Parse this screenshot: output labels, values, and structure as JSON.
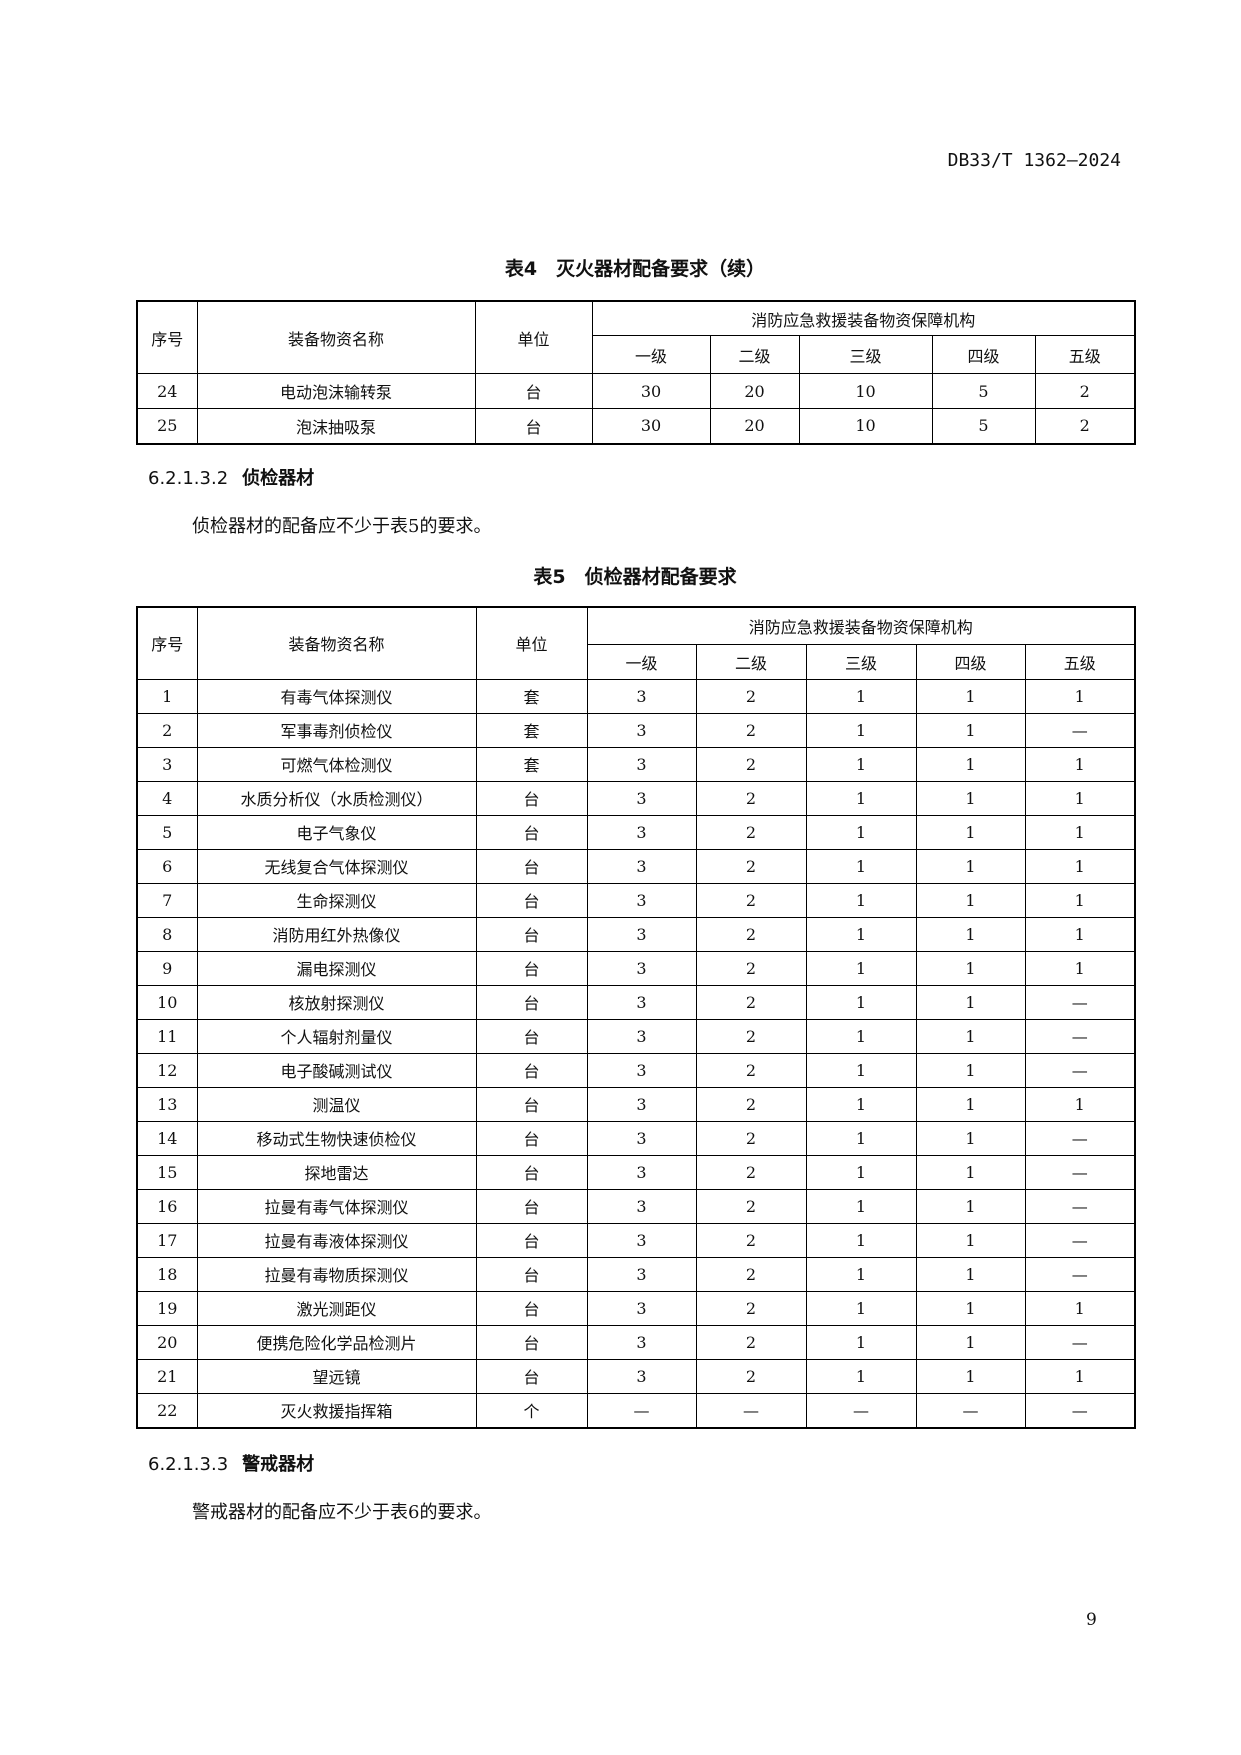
{
  "header": {
    "standard_no": "DB33/T 1362—2024"
  },
  "table4": {
    "title": "表4　灭火器材配备要求（续）",
    "headers": {
      "no": "序号",
      "name": "装备物资名称",
      "unit": "单位",
      "group": "消防应急救援装备物资保障机构",
      "levels": [
        "一级",
        "二级",
        "三级",
        "四级",
        "五级"
      ]
    },
    "rows": [
      [
        "24",
        "电动泡沫输转泵",
        "台",
        "30",
        "20",
        "10",
        "5",
        "2"
      ],
      [
        "25",
        "泡沫抽吸泵",
        "台",
        "30",
        "20",
        "10",
        "5",
        "2"
      ]
    ]
  },
  "section1": {
    "number": "6.2.1.3.2",
    "title": "侦检器材",
    "text": "侦检器材的配备应不少于表5的要求。"
  },
  "table5": {
    "title": "表5　侦检器材配备要求",
    "headers": {
      "no": "序号",
      "name": "装备物资名称",
      "unit": "单位",
      "group": "消防应急救援装备物资保障机构",
      "levels": [
        "一级",
        "二级",
        "三级",
        "四级",
        "五级"
      ]
    },
    "rows": [
      [
        "1",
        "有毒气体探测仪",
        "套",
        "3",
        "2",
        "1",
        "1",
        "1"
      ],
      [
        "2",
        "军事毒剂侦检仪",
        "套",
        "3",
        "2",
        "1",
        "1",
        "—"
      ],
      [
        "3",
        "可燃气体检测仪",
        "套",
        "3",
        "2",
        "1",
        "1",
        "1"
      ],
      [
        "4",
        "水质分析仪（水质检测仪）",
        "台",
        "3",
        "2",
        "1",
        "1",
        "1"
      ],
      [
        "5",
        "电子气象仪",
        "台",
        "3",
        "2",
        "1",
        "1",
        "1"
      ],
      [
        "6",
        "无线复合气体探测仪",
        "台",
        "3",
        "2",
        "1",
        "1",
        "1"
      ],
      [
        "7",
        "生命探测仪",
        "台",
        "3",
        "2",
        "1",
        "1",
        "1"
      ],
      [
        "8",
        "消防用红外热像仪",
        "台",
        "3",
        "2",
        "1",
        "1",
        "1"
      ],
      [
        "9",
        "漏电探测仪",
        "台",
        "3",
        "2",
        "1",
        "1",
        "1"
      ],
      [
        "10",
        "核放射探测仪",
        "台",
        "3",
        "2",
        "1",
        "1",
        "—"
      ],
      [
        "11",
        "个人辐射剂量仪",
        "台",
        "3",
        "2",
        "1",
        "1",
        "—"
      ],
      [
        "12",
        "电子酸碱测试仪",
        "台",
        "3",
        "2",
        "1",
        "1",
        "—"
      ],
      [
        "13",
        "测温仪",
        "台",
        "3",
        "2",
        "1",
        "1",
        "1"
      ],
      [
        "14",
        "移动式生物快速侦检仪",
        "台",
        "3",
        "2",
        "1",
        "1",
        "—"
      ],
      [
        "15",
        "探地雷达",
        "台",
        "3",
        "2",
        "1",
        "1",
        "—"
      ],
      [
        "16",
        "拉曼有毒气体探测仪",
        "台",
        "3",
        "2",
        "1",
        "1",
        "—"
      ],
      [
        "17",
        "拉曼有毒液体探测仪",
        "台",
        "3",
        "2",
        "1",
        "1",
        "—"
      ],
      [
        "18",
        "拉曼有毒物质探测仪",
        "台",
        "3",
        "2",
        "1",
        "1",
        "—"
      ],
      [
        "19",
        "激光测距仪",
        "台",
        "3",
        "2",
        "1",
        "1",
        "1"
      ],
      [
        "20",
        "便携危险化学品检测片",
        "台",
        "3",
        "2",
        "1",
        "1",
        "—"
      ],
      [
        "21",
        "望远镜",
        "台",
        "3",
        "2",
        "1",
        "1",
        "1"
      ],
      [
        "22",
        "灭火救援指挥箱",
        "个",
        "—",
        "—",
        "—",
        "—",
        "—"
      ]
    ]
  },
  "section2": {
    "number": "6.2.1.3.3",
    "title": "警戒器材",
    "text": "警戒器材的配备应不少于表6的要求。"
  },
  "footer": {
    "page_number": "9"
  }
}
